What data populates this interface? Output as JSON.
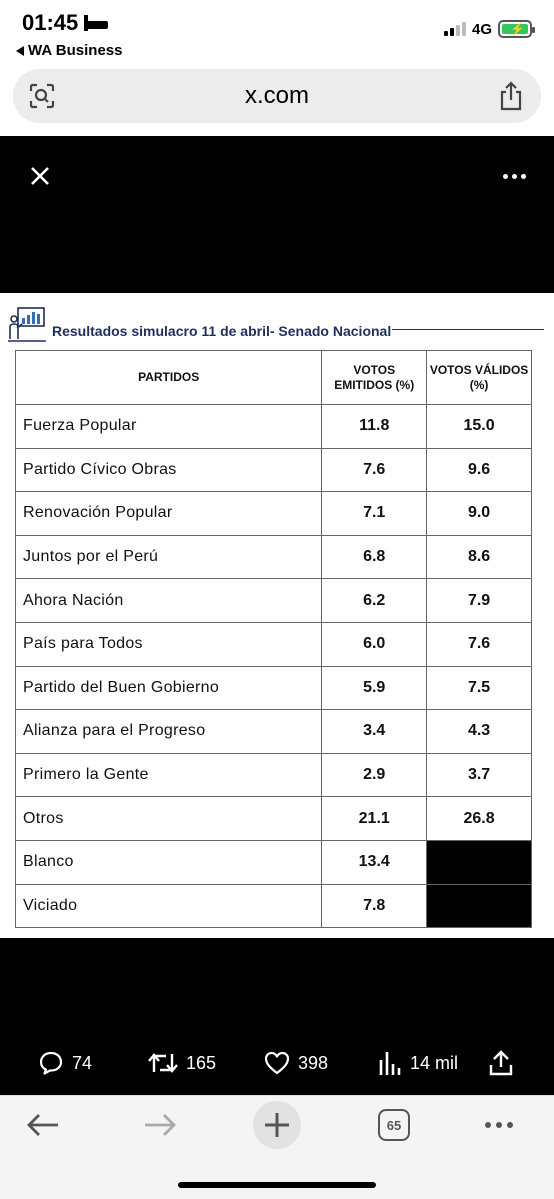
{
  "status": {
    "time": "01:45",
    "back_app": "WA Business",
    "network": "4G"
  },
  "browser": {
    "url": "x.com",
    "tabs_count": "65"
  },
  "post": {
    "image": {
      "title": "Resultados simulacro 11 de abril- Senado Nacional",
      "headers": {
        "party": "PARTIDOS",
        "emitted": "VOTOS EMITIDOS (%)",
        "valid": "VOTOS VÁLIDOS (%)"
      },
      "rows": [
        {
          "party": "Fuerza Popular",
          "emitted": "11.8",
          "valid": "15.0"
        },
        {
          "party": "Partido Cívico Obras",
          "emitted": "7.6",
          "valid": "9.6"
        },
        {
          "party": "Renovación Popular",
          "emitted": "7.1",
          "valid": "9.0"
        },
        {
          "party": "Juntos por el Perú",
          "emitted": "6.8",
          "valid": "8.6"
        },
        {
          "party": "Ahora Nación",
          "emitted": "6.2",
          "valid": "7.9"
        },
        {
          "party": "País para Todos",
          "emitted": "6.0",
          "valid": "7.6"
        },
        {
          "party": "Partido del Buen Gobierno",
          "emitted": "5.9",
          "valid": "7.5"
        },
        {
          "party": "Alianza para el Progreso",
          "emitted": "3.4",
          "valid": "4.3"
        },
        {
          "party": "Primero la Gente",
          "emitted": "2.9",
          "valid": "3.7"
        },
        {
          "party": "Otros",
          "emitted": "21.1",
          "valid": "26.8"
        },
        {
          "party": "Blanco",
          "emitted": "13.4",
          "valid": ""
        },
        {
          "party": "Viciado",
          "emitted": "7.8",
          "valid": ""
        }
      ]
    },
    "actions": {
      "replies": "74",
      "reposts": "165",
      "likes": "398",
      "views": "14 mil"
    }
  },
  "icons": {
    "close": "close-icon",
    "more": "more-icon",
    "share": "share-icon",
    "lens": "lens-icon"
  }
}
